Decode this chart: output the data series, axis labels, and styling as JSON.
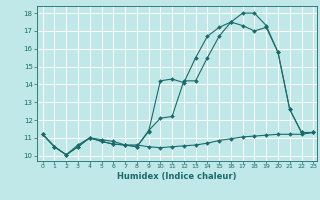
{
  "title": "",
  "xlabel": "Humidex (Indice chaleur)",
  "bg_color": "#c0e8e8",
  "grid_color": "#ffffff",
  "line_color": "#1a6b6b",
  "x_min": -0.5,
  "x_max": 23.3,
  "y_min": 9.7,
  "y_max": 18.4,
  "x_ticks": [
    0,
    1,
    2,
    3,
    4,
    5,
    6,
    7,
    8,
    9,
    10,
    11,
    12,
    13,
    14,
    15,
    16,
    17,
    18,
    19,
    20,
    21,
    22,
    23
  ],
  "y_ticks": [
    10,
    11,
    12,
    13,
    14,
    15,
    16,
    17,
    18
  ],
  "series1_x": [
    0,
    1,
    2,
    3,
    4,
    5,
    6,
    7,
    8,
    9,
    10,
    11,
    12,
    13,
    14,
    15,
    16,
    17,
    18,
    19,
    20,
    21,
    22,
    23
  ],
  "series1_y": [
    11.2,
    10.5,
    10.05,
    10.5,
    11.0,
    10.8,
    10.65,
    10.6,
    10.6,
    10.5,
    10.45,
    10.5,
    10.55,
    10.6,
    10.7,
    10.85,
    10.95,
    11.05,
    11.1,
    11.15,
    11.2,
    11.2,
    11.2,
    11.3
  ],
  "series2_x": [
    0,
    1,
    2,
    3,
    4,
    5,
    6,
    7,
    8,
    9,
    10,
    11,
    12,
    13,
    14,
    15,
    16,
    17,
    18,
    19,
    20,
    21,
    22,
    23
  ],
  "series2_y": [
    11.2,
    10.5,
    10.05,
    10.6,
    11.0,
    10.8,
    10.65,
    10.6,
    10.5,
    11.4,
    12.1,
    12.2,
    14.2,
    14.2,
    15.5,
    16.7,
    17.5,
    18.0,
    18.0,
    17.3,
    15.8,
    12.6,
    11.3,
    11.3
  ],
  "series3_x": [
    0,
    1,
    2,
    3,
    4,
    5,
    6,
    7,
    8,
    9,
    10,
    11,
    12,
    13,
    14,
    15,
    16,
    17,
    18,
    19,
    20,
    21,
    22,
    23
  ],
  "series3_y": [
    11.2,
    10.5,
    10.05,
    10.5,
    11.0,
    10.9,
    10.8,
    10.6,
    10.5,
    11.35,
    14.2,
    14.3,
    14.1,
    15.5,
    16.7,
    17.2,
    17.5,
    17.3,
    17.0,
    17.2,
    15.8,
    12.6,
    11.3,
    11.3
  ]
}
